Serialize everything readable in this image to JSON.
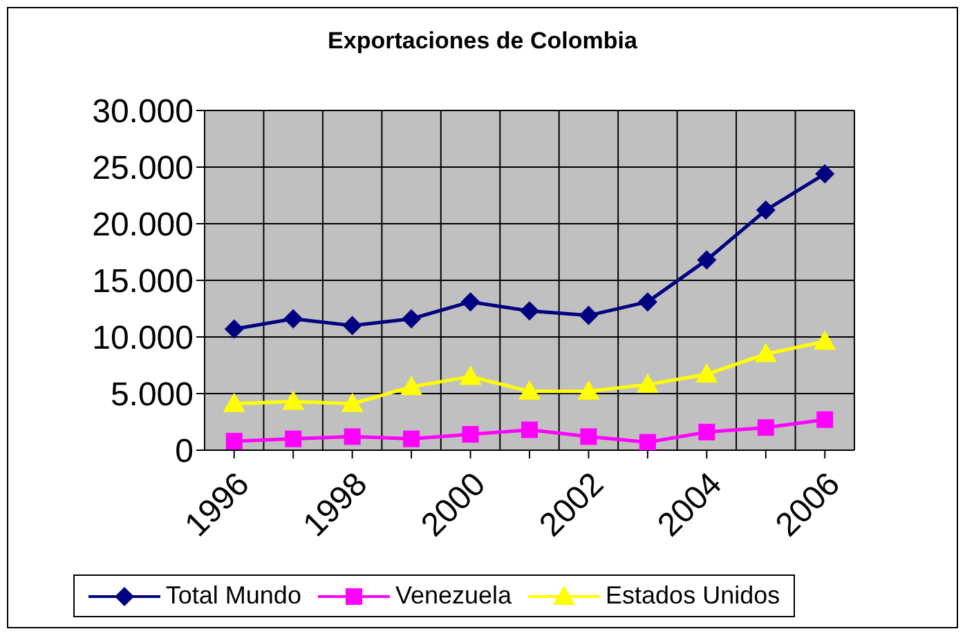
{
  "chart_data": {
    "type": "line",
    "title": "Exportaciones de Colombia",
    "categories": [
      "1996",
      null,
      "1998",
      null,
      "2000",
      null,
      "2002",
      null,
      "2004",
      null,
      "2006"
    ],
    "series": [
      {
        "name": "Total Mundo",
        "color": "#000080",
        "marker": "diamond",
        "values": [
          10700,
          11600,
          11000,
          11600,
          13100,
          12300,
          11900,
          13100,
          16800,
          21200,
          24400
        ]
      },
      {
        "name": "Venezuela",
        "color": "#ff00ff",
        "marker": "square",
        "values": [
          800,
          1000,
          1200,
          1000,
          1400,
          1800,
          1200,
          700,
          1600,
          2000,
          2700
        ]
      },
      {
        "name": "Estados Unidos",
        "color": "#ffff00",
        "marker": "triangle",
        "values": [
          4100,
          4300,
          4100,
          5600,
          6500,
          5200,
          5200,
          5800,
          6700,
          8500,
          9600
        ]
      }
    ],
    "ylim": [
      0,
      30000
    ],
    "yticks": [
      {
        "value": 0,
        "label": "0"
      },
      {
        "value": 5000,
        "label": "5.000"
      },
      {
        "value": 10000,
        "label": "10.000"
      },
      {
        "value": 15000,
        "label": "15.000"
      },
      {
        "value": 20000,
        "label": "20.000"
      },
      {
        "value": 25000,
        "label": "25.000"
      },
      {
        "value": 30000,
        "label": "30.000"
      }
    ],
    "grid": true,
    "legend": "bottom"
  }
}
